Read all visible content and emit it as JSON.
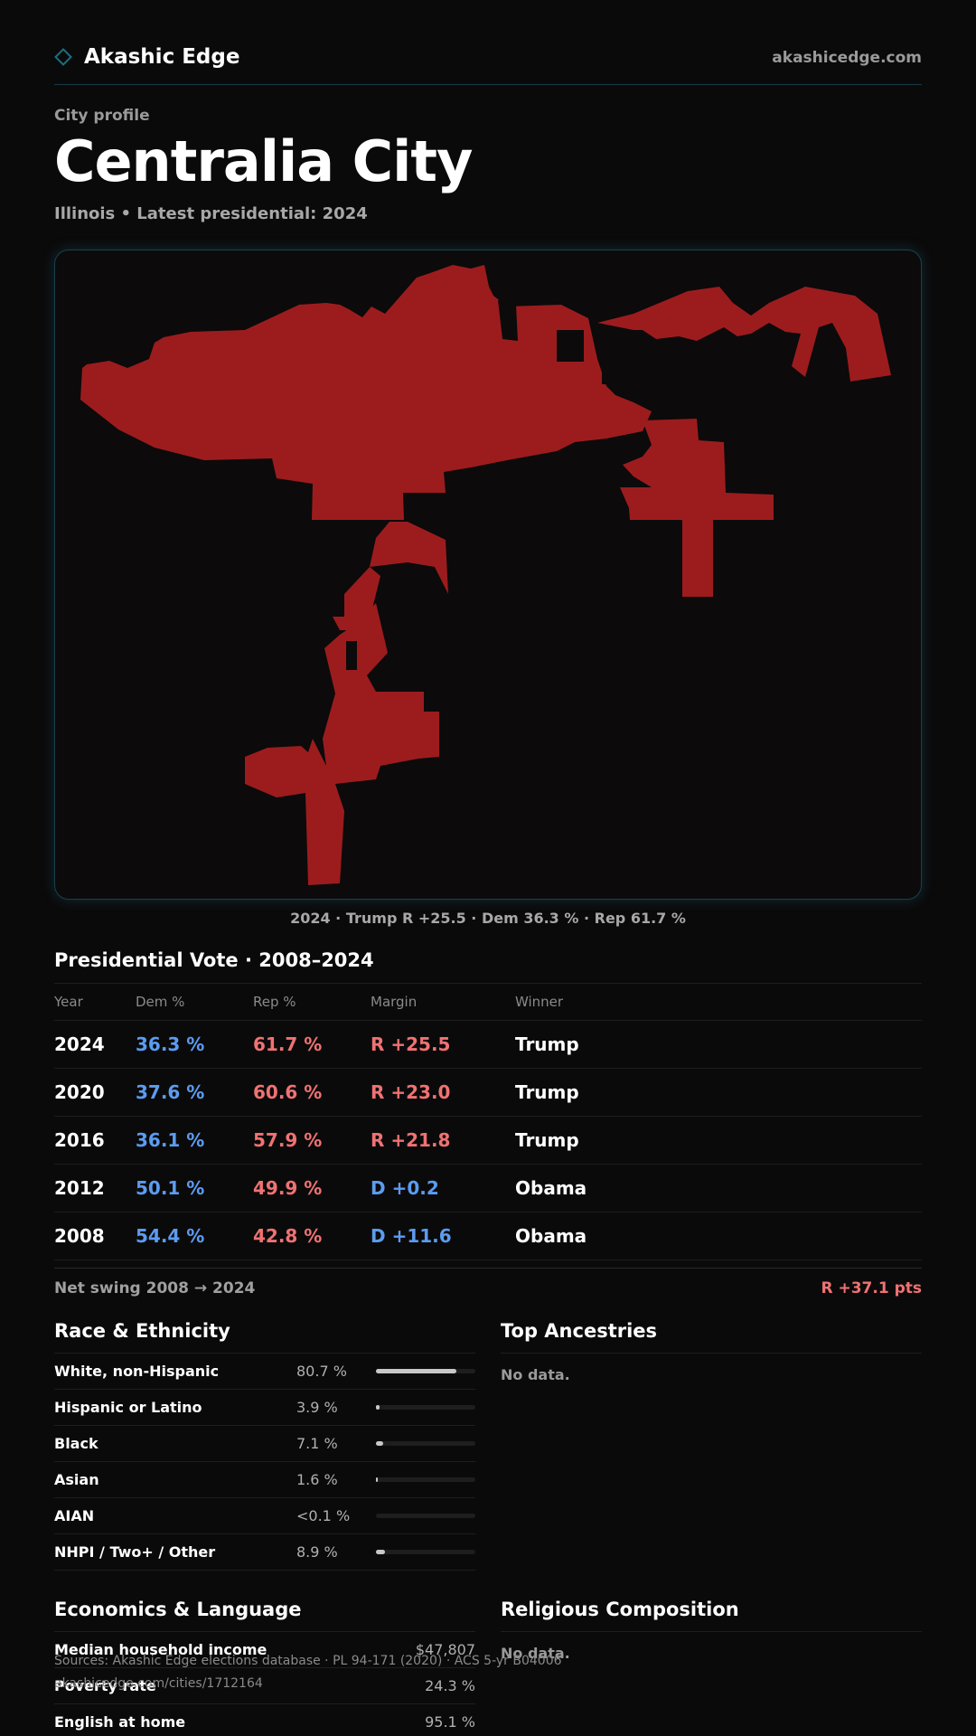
{
  "header": {
    "brand": "Akashic Edge",
    "site": "akashicedge.com"
  },
  "profile": {
    "kicker": "City profile",
    "title": "Centralia City",
    "subtitle": "Illinois • Latest presidential: 2024"
  },
  "map": {
    "fill_color": "#9c1c1e",
    "caption": "2024 · Trump R +25.5 · Dem 36.3 % · Rep 61.7 %"
  },
  "vote": {
    "title": "Presidential Vote · 2008–2024",
    "headers": {
      "year": "Year",
      "dem": "Dem %",
      "rep": "Rep %",
      "margin": "Margin",
      "winner": "Winner"
    },
    "rows": [
      {
        "year": "2024",
        "dem": "36.3 %",
        "rep": "61.7 %",
        "margin": "R +25.5",
        "party": "R",
        "winner": "Trump"
      },
      {
        "year": "2020",
        "dem": "37.6 %",
        "rep": "60.6 %",
        "margin": "R +23.0",
        "party": "R",
        "winner": "Trump"
      },
      {
        "year": "2016",
        "dem": "36.1 %",
        "rep": "57.9 %",
        "margin": "R +21.8",
        "party": "R",
        "winner": "Trump"
      },
      {
        "year": "2012",
        "dem": "50.1 %",
        "rep": "49.9 %",
        "margin": "D +0.2",
        "party": "D",
        "winner": "Obama"
      },
      {
        "year": "2008",
        "dem": "54.4 %",
        "rep": "42.8 %",
        "margin": "D +11.6",
        "party": "D",
        "winner": "Obama"
      }
    ],
    "swing_label": "Net swing 2008 → 2024",
    "swing_value": "R +37.1 pts"
  },
  "race": {
    "title": "Race & Ethnicity",
    "rows": [
      {
        "label": "White, non-Hispanic",
        "pct": "80.7 %",
        "share": 0.807
      },
      {
        "label": "Hispanic or Latino",
        "pct": "3.9 %",
        "share": 0.039
      },
      {
        "label": "Black",
        "pct": "7.1 %",
        "share": 0.071
      },
      {
        "label": "Asian",
        "pct": "1.6 %",
        "share": 0.016
      },
      {
        "label": "AIAN",
        "pct": "<0.1 %",
        "share": 0.0
      },
      {
        "label": "NHPI / Two+ / Other",
        "pct": "8.9 %",
        "share": 0.089
      }
    ]
  },
  "ancestries": {
    "title": "Top Ancestries",
    "empty": "No data."
  },
  "economics": {
    "title": "Economics & Language",
    "rows": [
      {
        "label": "Median household income",
        "value": "$47,807"
      },
      {
        "label": "Poverty rate",
        "value": "24.3 %"
      },
      {
        "label": "English at home",
        "value": "95.1 %"
      }
    ]
  },
  "religion": {
    "title": "Religious Composition",
    "empty": "No data."
  },
  "footer": {
    "sources": "Sources: Akashic Edge elections database · PL 94-171 (2020) · ACS 5-yr B04006",
    "url": "akashicedge.com/cities/1712164"
  }
}
